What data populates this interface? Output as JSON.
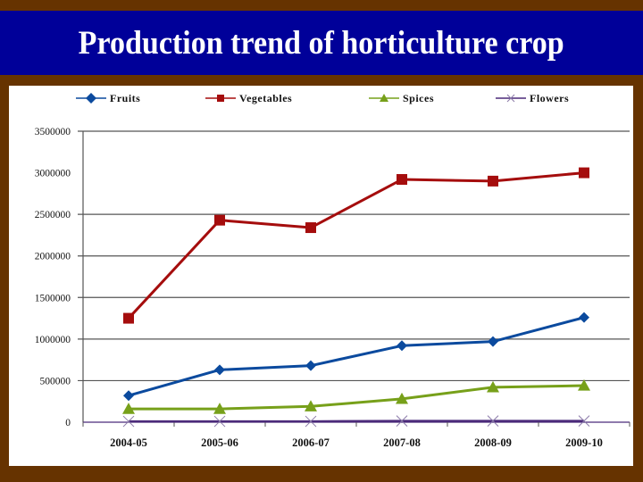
{
  "slide": {
    "title": "Production trend of horticulture crop",
    "colors": {
      "frame": "#663300",
      "title_bar": "#000099",
      "title_text": "#ffffff",
      "panel": "#ffffff"
    }
  },
  "chart_data": {
    "type": "line",
    "title": "Production trend of horticulture crop",
    "xlabel": "",
    "ylabel": "",
    "categories": [
      "2004-05",
      "2005-06",
      "2006-07",
      "2007-08",
      "2008-09",
      "2009-10"
    ],
    "ylim": [
      0,
      3500000
    ],
    "yticks": [
      0,
      500000,
      1000000,
      1500000,
      2000000,
      2500000,
      3000000,
      3500000
    ],
    "ytick_labels": [
      "0",
      "500000",
      "1000000",
      "1500000",
      "2000000",
      "2500000",
      "3000000",
      "3500000"
    ],
    "grid": true,
    "legend_position": "top",
    "series": [
      {
        "name": "Fruits",
        "color": "#0b4a9e",
        "marker": "diamond",
        "values": [
          320000,
          630000,
          680000,
          920000,
          970000,
          1260000
        ]
      },
      {
        "name": "Vegetables",
        "color": "#a50d0d",
        "marker": "square",
        "values": [
          1250000,
          2430000,
          2340000,
          2920000,
          2900000,
          3000000
        ]
      },
      {
        "name": "Spices",
        "color": "#77a01a",
        "marker": "triangle",
        "values": [
          160000,
          160000,
          190000,
          280000,
          420000,
          440000
        ]
      },
      {
        "name": "Flowers",
        "color": "#4b2a7a",
        "marker": "x",
        "values": [
          10000,
          10000,
          10000,
          15000,
          15000,
          15000
        ]
      }
    ]
  }
}
